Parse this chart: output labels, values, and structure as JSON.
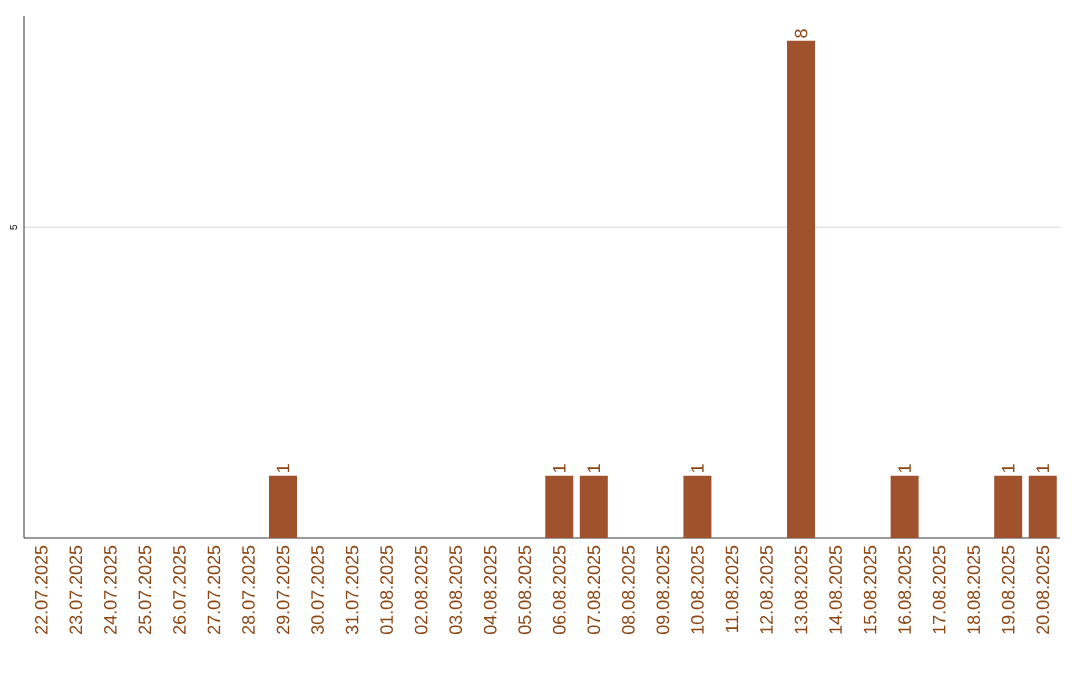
{
  "chart_data": {
    "type": "bar",
    "categories": [
      "22.07.2025",
      "23.07.2025",
      "24.07.2025",
      "25.07.2025",
      "26.07.2025",
      "27.07.2025",
      "28.07.2025",
      "29.07.2025",
      "30.07.2025",
      "31.07.2025",
      "01.08.2025",
      "02.08.2025",
      "03.08.2025",
      "04.08.2025",
      "05.08.2025",
      "06.08.2025",
      "07.08.2025",
      "08.08.2025",
      "09.08.2025",
      "10.08.2025",
      "11.08.2025",
      "12.08.2025",
      "13.08.2025",
      "14.08.2025",
      "15.08.2025",
      "16.08.2025",
      "17.08.2025",
      "18.08.2025",
      "19.08.2025",
      "20.08.2025"
    ],
    "values": [
      0,
      0,
      0,
      0,
      0,
      0,
      0,
      1,
      0,
      0,
      0,
      0,
      0,
      0,
      0,
      1,
      1,
      0,
      0,
      1,
      0,
      0,
      8,
      0,
      0,
      1,
      0,
      0,
      1,
      1
    ],
    "value_labels": [
      null,
      null,
      null,
      null,
      null,
      null,
      null,
      "1",
      null,
      null,
      null,
      null,
      null,
      null,
      null,
      "1",
      "1",
      null,
      null,
      "1",
      null,
      null,
      "8",
      null,
      null,
      "1",
      null,
      null,
      "1",
      "1"
    ],
    "color": "#a0522d",
    "ylim": [
      0,
      8.4
    ],
    "yticks": [
      5
    ],
    "grid": "y"
  }
}
